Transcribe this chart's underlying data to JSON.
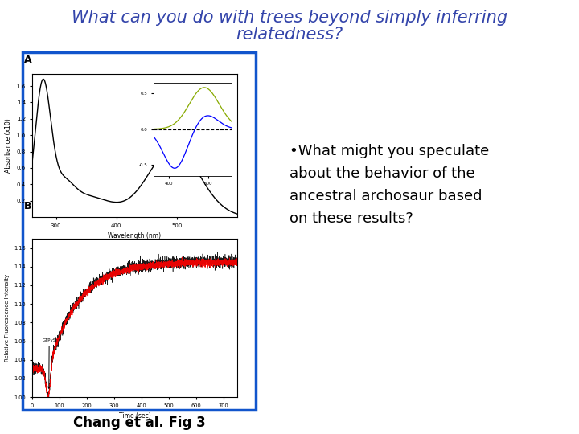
{
  "title_line1": "What can you do with trees beyond simply inferring",
  "title_line2": "relatedness?",
  "title_color": "#3344aa",
  "title_fontsize": 15,
  "title_style": "italic",
  "bullet_text": "•What might you speculate\nabout the behavior of the\nancestral archosaur based\non these results?",
  "bullet_fontsize": 13,
  "bullet_color": "#000000",
  "caption_text": "Chang et al. Fig 3",
  "caption_fontsize": 12,
  "caption_color": "#000000",
  "bg_color": "#ffffff",
  "box_border_color": "#1155cc"
}
